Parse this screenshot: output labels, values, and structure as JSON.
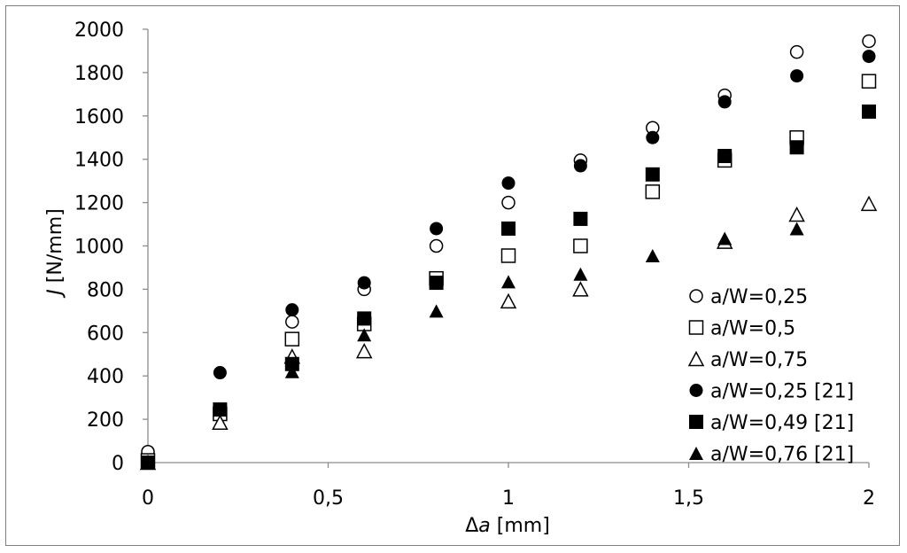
{
  "chart_data": {
    "type": "scatter",
    "title": "",
    "xlabel_prefix": "Δ",
    "xlabel_var": "a",
    "xlabel_unit": " [mm]",
    "ylabel_var": "J",
    "ylabel_unit": " [N/mm]",
    "xlim": [
      0,
      2
    ],
    "ylim": [
      0,
      2000
    ],
    "x_ticks": [
      0,
      0.5,
      1,
      1.5,
      2
    ],
    "x_tick_labels": [
      "0",
      "0,5",
      "1",
      "1,5",
      "2"
    ],
    "y_ticks": [
      0,
      200,
      400,
      600,
      800,
      1000,
      1200,
      1400,
      1600,
      1800,
      2000
    ],
    "y_tick_labels": [
      "0",
      "200",
      "400",
      "600",
      "800",
      "1000",
      "1200",
      "1400",
      "1600",
      "1800",
      "2000"
    ],
    "grid": false,
    "legend_position": "bottom-right",
    "marker_color": "#000000",
    "series": [
      {
        "name": "a/W=0,25",
        "marker": "circle-open",
        "x": [
          0,
          0.4,
          0.6,
          0.8,
          1.0,
          1.2,
          1.4,
          1.6,
          1.8,
          2.0
        ],
        "y": [
          50,
          650,
          800,
          1000,
          1200,
          1395,
          1545,
          1695,
          1895,
          1945
        ]
      },
      {
        "name": "a/W=0,5",
        "marker": "square-open",
        "x": [
          0,
          0.2,
          0.4,
          0.6,
          0.8,
          1.0,
          1.2,
          1.4,
          1.6,
          1.8,
          2.0
        ],
        "y": [
          10,
          225,
          570,
          640,
          850,
          955,
          1000,
          1250,
          1395,
          1500,
          1760
        ]
      },
      {
        "name": "a/W=0,75",
        "marker": "triangle-open",
        "x": [
          0,
          0.2,
          0.4,
          0.6,
          1.0,
          1.2,
          1.6,
          1.8,
          2.0
        ],
        "y": [
          0,
          185,
          490,
          515,
          745,
          800,
          1020,
          1145,
          1195
        ]
      },
      {
        "name": "a/W=0,25 [21]",
        "marker": "circle-filled",
        "x": [
          0.2,
          0.4,
          0.6,
          0.8,
          1.0,
          1.2,
          1.4,
          1.6,
          1.8,
          2.0
        ],
        "y": [
          415,
          705,
          830,
          1080,
          1290,
          1370,
          1500,
          1665,
          1785,
          1875
        ]
      },
      {
        "name": "a/W=0,49 [21]",
        "marker": "square-filled",
        "x": [
          0,
          0.2,
          0.4,
          0.6,
          0.8,
          1.0,
          1.2,
          1.4,
          1.6,
          1.8,
          2.0
        ],
        "y": [
          0,
          245,
          455,
          665,
          830,
          1080,
          1125,
          1330,
          1415,
          1455,
          1620
        ]
      },
      {
        "name": "a/W=0,76 [21]",
        "marker": "triangle-filled",
        "x": [
          0,
          0.4,
          0.6,
          0.8,
          1.0,
          1.2,
          1.4,
          1.6,
          1.8
        ],
        "y": [
          5,
          420,
          590,
          700,
          835,
          870,
          955,
          1035,
          1080
        ]
      }
    ]
  }
}
